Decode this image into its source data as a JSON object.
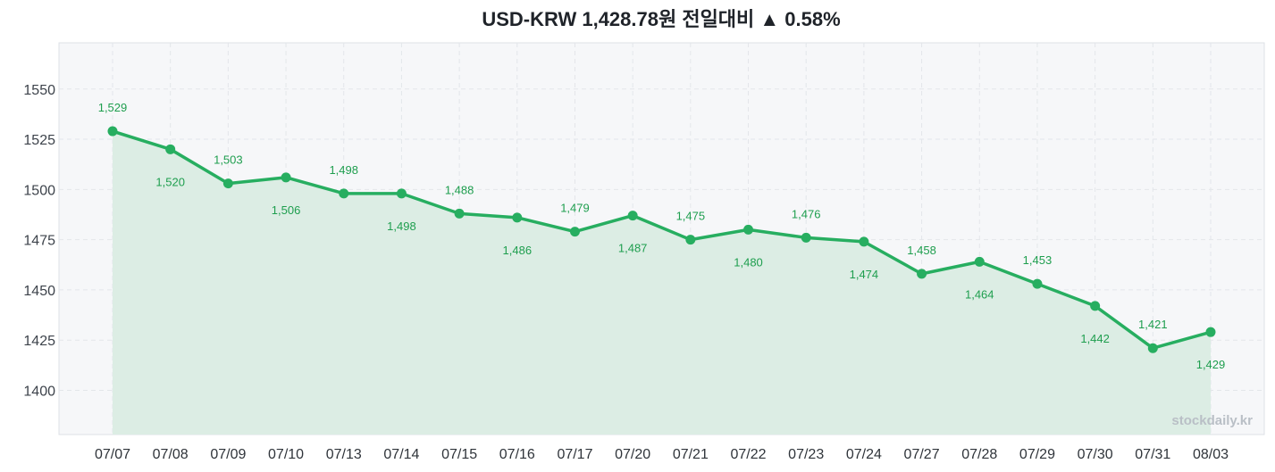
{
  "watermark": "stockdaily.kr",
  "colors": {
    "line": "#27ae60",
    "area": "#dcede4",
    "data_label": "#1e9e4e"
  },
  "chart_data": {
    "type": "line",
    "title": "USD-KRW 1,428.78원 전일대비 ▲ 0.58%",
    "xlabel": "",
    "ylabel": "",
    "categories": [
      "07/07",
      "07/08",
      "07/09",
      "07/10",
      "07/13",
      "07/14",
      "07/15",
      "07/16",
      "07/17",
      "07/20",
      "07/21",
      "07/22",
      "07/23",
      "07/24",
      "07/27",
      "07/28",
      "07/29",
      "07/30",
      "07/31",
      "08/03"
    ],
    "series": [
      {
        "values": [
          1529,
          1520,
          1503,
          1506,
          1498,
          1498,
          1488,
          1486,
          1479,
          1487,
          1475,
          1480,
          1476,
          1474,
          1458,
          1464,
          1453,
          1442,
          1421,
          1429
        ],
        "labels": [
          "1,529",
          "1,520",
          "1,503",
          "1,506",
          "1,498",
          "1,498",
          "1,488",
          "1,486",
          "1,479",
          "1,487",
          "1,475",
          "1,480",
          "1,476",
          "1,474",
          "1,458",
          "1,464",
          "1,453",
          "1,442",
          "1,421",
          "1,429"
        ]
      }
    ],
    "yticks": [
      1400,
      1425,
      1450,
      1475,
      1500,
      1525,
      1550
    ],
    "ylim": [
      1378,
      1573
    ],
    "grid": true,
    "area_fill": true,
    "legend": "none"
  }
}
